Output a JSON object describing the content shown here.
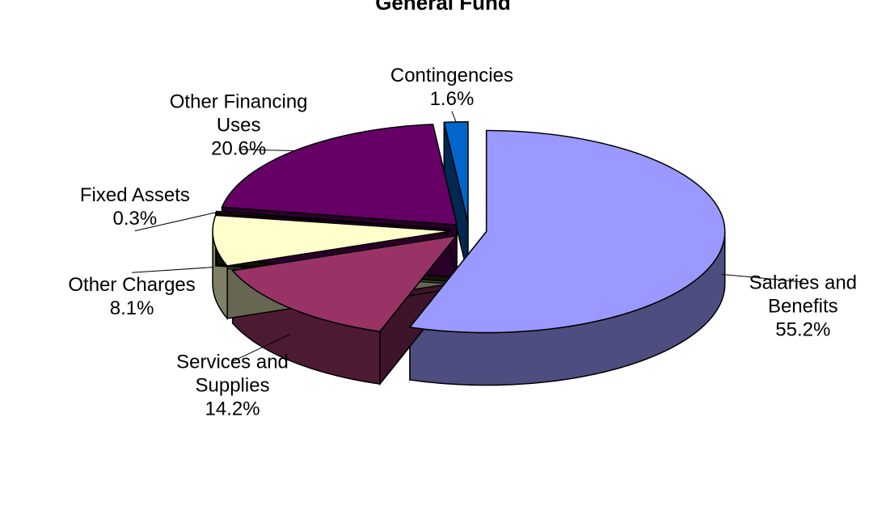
{
  "chart_data": {
    "type": "pie",
    "title": "General Fund",
    "categories": [
      "Salaries and Benefits",
      "Services and Supplies",
      "Other Charges",
      "Fixed Assets",
      "Other Financing Uses",
      "Contingencies"
    ],
    "values": [
      55.2,
      14.2,
      8.1,
      0.3,
      20.6,
      1.6
    ],
    "value_labels": [
      "55.2%",
      "14.2%",
      "8.1%",
      "0.3%",
      "20.6%",
      "1.6%"
    ],
    "colors": [
      "#9999ff",
      "#993366",
      "#ffffcc",
      "#333300",
      "#660066",
      "#0066cc"
    ]
  }
}
